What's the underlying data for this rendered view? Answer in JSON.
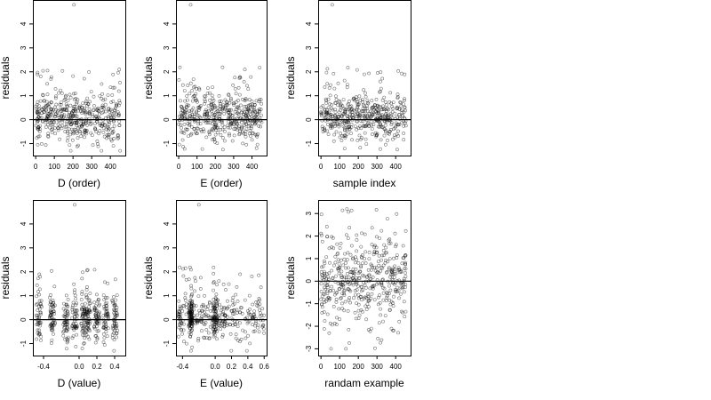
{
  "chart_data": [
    {
      "type": "scatter",
      "xlabel": "D (order)",
      "ylabel": "residuals",
      "x_ticks": [
        "0",
        "100",
        "200",
        "300",
        "400"
      ],
      "y_ticks": [
        "-1",
        "0",
        "1",
        "2",
        "3",
        "4"
      ],
      "xlim": [
        -15,
        480
      ],
      "ylim": [
        -1.5,
        5.0
      ],
      "x_tick_values": [
        0,
        100,
        200,
        300,
        400
      ],
      "y_tick_values": [
        -1,
        0,
        1,
        2,
        3,
        4
      ],
      "reference_line_y": 0,
      "n_points": 460,
      "residual_spread": [
        -1.3,
        2.2
      ],
      "outlier": {
        "x": 205,
        "y": 4.8
      }
    },
    {
      "type": "scatter",
      "xlabel": "E (order)",
      "ylabel": "residuals",
      "x_ticks": [
        "0",
        "100",
        "200",
        "300",
        "400"
      ],
      "y_ticks": [
        "-1",
        "0",
        "1",
        "2",
        "3",
        "4"
      ],
      "xlim": [
        -15,
        480
      ],
      "ylim": [
        -1.5,
        5.0
      ],
      "x_tick_values": [
        0,
        100,
        200,
        300,
        400
      ],
      "y_tick_values": [
        -1,
        0,
        1,
        2,
        3,
        4
      ],
      "reference_line_y": 0,
      "n_points": 460,
      "residual_spread": [
        -1.3,
        2.2
      ],
      "outlier": {
        "x": 65,
        "y": 4.8
      }
    },
    {
      "type": "scatter",
      "xlabel": "sample index",
      "ylabel": "residuals",
      "x_ticks": [
        "0",
        "100",
        "200",
        "300",
        "400"
      ],
      "y_ticks": [
        "-1",
        "0",
        "1",
        "2",
        "3",
        "4"
      ],
      "xlim": [
        -15,
        480
      ],
      "ylim": [
        -1.5,
        5.0
      ],
      "x_tick_values": [
        0,
        100,
        200,
        300,
        400
      ],
      "y_tick_values": [
        -1,
        0,
        1,
        2,
        3,
        4
      ],
      "reference_line_y": 0,
      "n_points": 460,
      "residual_spread": [
        -1.3,
        2.2
      ],
      "outlier": {
        "x": 60,
        "y": 4.8
      }
    },
    {
      "type": "scatter",
      "xlabel": "D (value)",
      "ylabel": "residuals",
      "x_ticks": [
        "-0.4",
        "0.0",
        "0.2",
        "0.4"
      ],
      "y_ticks": [
        "-1",
        "0",
        "1",
        "2",
        "3",
        "4"
      ],
      "xlim": [
        -0.52,
        0.52
      ],
      "ylim": [
        -1.5,
        5.0
      ],
      "x_tick_values": [
        -0.4,
        0.0,
        0.2,
        0.4
      ],
      "y_tick_values": [
        -1,
        0,
        1,
        2,
        3,
        4
      ],
      "reference_line_y": 0,
      "n_points": 460,
      "residual_spread": [
        -1.3,
        2.2
      ],
      "outlier": {
        "x": -0.05,
        "y": 4.8
      }
    },
    {
      "type": "scatter",
      "xlabel": "E (value)",
      "ylabel": "residuals",
      "x_ticks": [
        "-0.4",
        "0.0",
        "0.2",
        "0.4",
        "0.6"
      ],
      "y_ticks": [
        "-1",
        "0",
        "1",
        "2",
        "3",
        "4"
      ],
      "xlim": [
        -0.48,
        0.63
      ],
      "ylim": [
        -1.5,
        5.0
      ],
      "x_tick_values": [
        -0.4,
        0.0,
        0.2,
        0.4,
        0.6
      ],
      "y_tick_values": [
        -1,
        0,
        1,
        2,
        3,
        4
      ],
      "reference_line_y": 0,
      "n_points": 460,
      "residual_spread": [
        -1.3,
        2.2
      ],
      "outlier": {
        "x": -0.2,
        "y": 4.8
      }
    },
    {
      "type": "scatter",
      "xlabel": "randam example",
      "ylabel": "residuals",
      "x_ticks": [
        "0",
        "100",
        "200",
        "300",
        "400"
      ],
      "y_ticks": [
        "-3",
        "-2",
        "-1",
        "0",
        "1",
        "2",
        "3"
      ],
      "xlim": [
        -15,
        480
      ],
      "ylim": [
        -3.3,
        3.6
      ],
      "x_tick_values": [
        0,
        100,
        200,
        300,
        400
      ],
      "y_tick_values": [
        -3,
        -2,
        -1,
        0,
        1,
        2,
        3
      ],
      "reference_line_y": 0,
      "n_points": 460,
      "residual_spread": [
        -3.0,
        3.2
      ]
    }
  ]
}
